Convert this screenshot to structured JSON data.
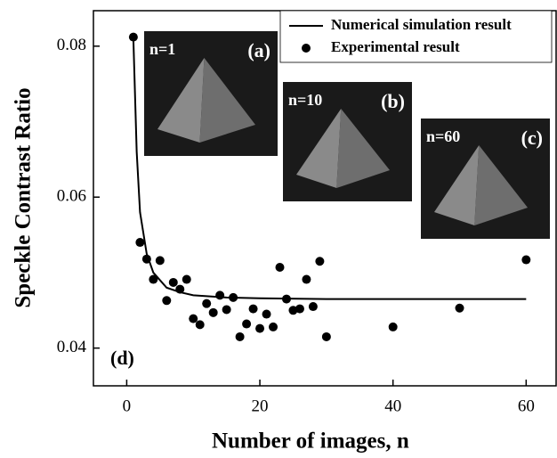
{
  "chart_data": {
    "type": "scatter",
    "x_label": "Number of images, n",
    "y_label": "Speckle Contrast Ratio",
    "annotation": "(d)",
    "xlim": [
      -5,
      64.5
    ],
    "ylim": [
      0.035,
      0.0847
    ],
    "xticks": [
      0,
      20,
      40,
      60
    ],
    "yticks": [
      {
        "value": 0.04,
        "label": "0.04"
      },
      {
        "value": 0.06,
        "label": "0.06"
      },
      {
        "value": 0.08,
        "label": "0.08"
      }
    ],
    "legend": "upper right",
    "series": [
      {
        "name": "Numerical simulation result",
        "type": "line",
        "color": "#000000",
        "x": [
          1,
          1.5,
          2,
          3,
          4,
          6,
          8,
          10,
          15,
          20,
          30,
          60
        ],
        "values": [
          0.081,
          0.066,
          0.058,
          0.0525,
          0.05,
          0.048,
          0.0474,
          0.047,
          0.0467,
          0.0466,
          0.0465,
          0.0465
        ]
      },
      {
        "name": "Experimental result",
        "type": "scatter",
        "color": "#000000",
        "x": [
          1,
          2,
          3,
          4,
          5,
          6,
          7,
          8,
          9,
          10,
          11,
          12,
          13,
          14,
          15,
          16,
          17,
          18,
          19,
          20,
          21,
          22,
          23,
          24,
          25,
          26,
          27,
          28,
          29,
          30,
          40,
          50,
          60
        ],
        "values": [
          0.0812,
          0.054,
          0.0518,
          0.0491,
          0.0516,
          0.0463,
          0.0487,
          0.0478,
          0.0491,
          0.0439,
          0.0431,
          0.0459,
          0.0447,
          0.047,
          0.0451,
          0.0467,
          0.0415,
          0.0432,
          0.0452,
          0.0426,
          0.0445,
          0.0428,
          0.0507,
          0.0465,
          0.045,
          0.0452,
          0.0491,
          0.0455,
          0.0515,
          0.0415,
          0.0428,
          0.0453,
          0.0517
        ]
      }
    ],
    "insets": [
      {
        "label": "n=1",
        "tag": "(a)"
      },
      {
        "label": "n=10",
        "tag": "(b)"
      },
      {
        "label": "n=60",
        "tag": "(c)"
      }
    ]
  }
}
